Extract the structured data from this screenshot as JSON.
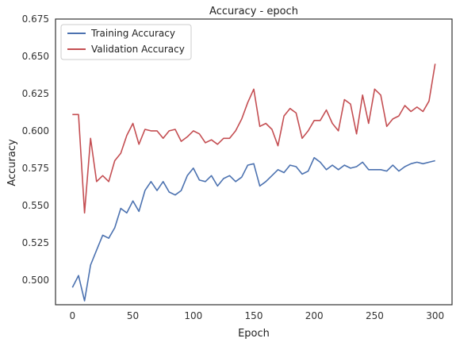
{
  "chart_data": {
    "type": "line",
    "title": "Accuracy - epoch",
    "xlabel": "Epoch",
    "ylabel": "Accuracy",
    "xlim": [
      -14,
      314
    ],
    "ylim": [
      0.4834,
      0.675
    ],
    "xticks": [
      0,
      50,
      100,
      150,
      200,
      250,
      300
    ],
    "yticks": [
      0.5,
      0.525,
      0.55,
      0.575,
      0.6,
      0.625,
      0.65,
      0.675
    ],
    "ytick_labels": [
      "0.500",
      "0.525",
      "0.550",
      "0.575",
      "0.600",
      "0.625",
      "0.650",
      "0.675"
    ],
    "grid": false,
    "legend_position": "top-left",
    "series": [
      {
        "name": "Training Accuracy",
        "color": "#4c72b0",
        "x_step": 5,
        "values": [
          0.495,
          0.503,
          0.486,
          0.51,
          0.52,
          0.53,
          0.528,
          0.535,
          0.548,
          0.545,
          0.553,
          0.546,
          0.56,
          0.566,
          0.56,
          0.566,
          0.559,
          0.557,
          0.56,
          0.57,
          0.575,
          0.567,
          0.566,
          0.57,
          0.563,
          0.568,
          0.57,
          0.566,
          0.569,
          0.577,
          0.578,
          0.563,
          0.566,
          0.57,
          0.574,
          0.572,
          0.577,
          0.576,
          0.571,
          0.573,
          0.582,
          0.579,
          0.574,
          0.577,
          0.574,
          0.577,
          0.575,
          0.576,
          0.579,
          0.574,
          0.574,
          0.574,
          0.573,
          0.577,
          0.573,
          0.576,
          0.578,
          0.579,
          0.578,
          0.579,
          0.58
        ]
      },
      {
        "name": "Validation Accuracy",
        "color": "#c44e52",
        "x_step": 5,
        "values": [
          0.611,
          0.611,
          0.545,
          0.595,
          0.566,
          0.57,
          0.566,
          0.58,
          0.585,
          0.597,
          0.605,
          0.591,
          0.601,
          0.6,
          0.6,
          0.595,
          0.6,
          0.601,
          0.593,
          0.596,
          0.6,
          0.598,
          0.592,
          0.594,
          0.591,
          0.595,
          0.595,
          0.6,
          0.608,
          0.619,
          0.628,
          0.603,
          0.605,
          0.601,
          0.59,
          0.61,
          0.615,
          0.612,
          0.595,
          0.6,
          0.607,
          0.607,
          0.614,
          0.605,
          0.6,
          0.621,
          0.618,
          0.598,
          0.624,
          0.605,
          0.628,
          0.624,
          0.603,
          0.608,
          0.61,
          0.617,
          0.613,
          0.616,
          0.613,
          0.62,
          0.645
        ]
      }
    ]
  }
}
